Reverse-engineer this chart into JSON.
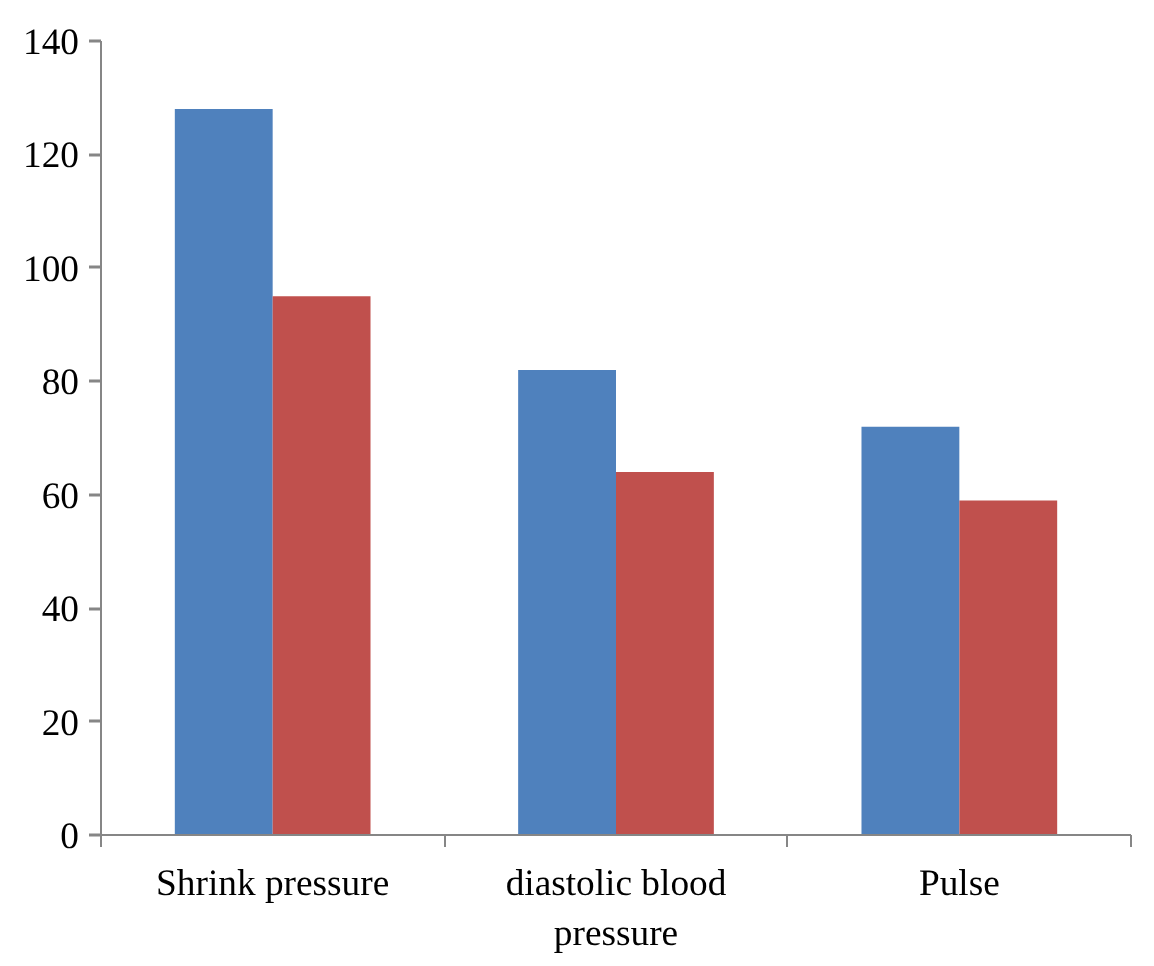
{
  "chart_data": {
    "type": "bar",
    "categories": [
      "Shrink pressure",
      "diastolic blood pressure",
      "Pulse"
    ],
    "series": [
      {
        "color": "#4f81bd",
        "values": [
          128,
          82,
          72
        ]
      },
      {
        "color": "#c0504d",
        "values": [
          95,
          64,
          59
        ]
      }
    ],
    "ylim": [
      0,
      140
    ],
    "yticks": [
      0,
      20,
      40,
      60,
      80,
      100,
      120,
      140
    ],
    "grid": false
  }
}
